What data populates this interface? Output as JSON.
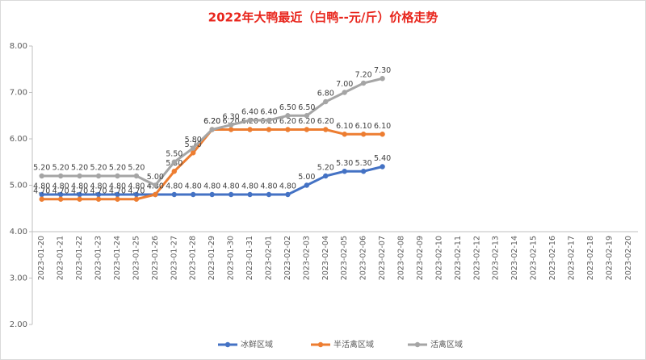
{
  "chart_data": {
    "type": "line",
    "title": "2022年大鸭最近（白鸭--元/斤）价格走势",
    "categories": [
      "2023-01-20",
      "2023-01-21",
      "2023-01-22",
      "2023-01-23",
      "2023-01-24",
      "2023-01-25",
      "2023-01-26",
      "2023-01-27",
      "2023-01-28",
      "2023-01-29",
      "2023-01-30",
      "2023-01-31",
      "2023-02-01",
      "2023-02-02",
      "2023-02-03",
      "2023-02-04",
      "2023-02-05",
      "2023-02-06",
      "2023-02-07",
      "2023-02-08",
      "2023-02-09",
      "2023-02-10",
      "2023-02-11",
      "2023-02-12",
      "2023-02-13",
      "2023-02-14",
      "2023-02-15",
      "2023-02-16",
      "2023-02-17",
      "2023-02-18",
      "2023-02-19",
      "2023-02-20"
    ],
    "series": [
      {
        "name": "冰鲜区域",
        "color": "#4472c4",
        "values": [
          4.8,
          4.8,
          4.8,
          4.8,
          4.8,
          4.8,
          4.8,
          4.8,
          4.8,
          4.8,
          4.8,
          4.8,
          4.8,
          4.8,
          5.0,
          5.2,
          5.3,
          5.3,
          5.4,
          null,
          null,
          null,
          null,
          null,
          null,
          null,
          null,
          null,
          null,
          null,
          null,
          null
        ],
        "value_labels": [
          "4.80",
          "4.80",
          "4.80",
          "4.80",
          "4.80",
          "4.80",
          "4.80",
          "4.80",
          "4.80",
          "4.80",
          "4.80",
          "4.80",
          "4.80",
          "4.80",
          "5.00",
          "5.20",
          "5.30",
          "5.30",
          "5.40",
          null,
          null,
          null,
          null,
          null,
          null,
          null,
          null,
          null,
          null,
          null,
          null,
          null
        ]
      },
      {
        "name": "半活禽区域",
        "color": "#ed7d31",
        "values": [
          4.7,
          4.7,
          4.7,
          4.7,
          4.7,
          4.7,
          4.8,
          5.3,
          5.7,
          6.2,
          6.2,
          6.2,
          6.2,
          6.2,
          6.2,
          6.2,
          6.1,
          6.1,
          6.1,
          null,
          null,
          null,
          null,
          null,
          null,
          null,
          null,
          null,
          null,
          null,
          null,
          null
        ],
        "value_labels": [
          "4.70",
          "4.70",
          "4.70",
          "4.70",
          "4.70",
          "4.70",
          "4.80",
          "5.30",
          "5.70",
          "6.20",
          "6.20",
          "6.20",
          "6.20",
          "6.20",
          "6.20",
          "6.20",
          "6.10",
          "6.10",
          "6.10",
          null,
          null,
          null,
          null,
          null,
          null,
          null,
          null,
          null,
          null,
          null,
          null,
          null
        ]
      },
      {
        "name": "活禽区域",
        "color": "#a5a5a5",
        "values": [
          5.2,
          5.2,
          5.2,
          5.2,
          5.2,
          5.2,
          5.0,
          5.5,
          5.8,
          6.2,
          6.3,
          6.4,
          6.4,
          6.5,
          6.5,
          6.8,
          7.0,
          7.2,
          7.3,
          null,
          null,
          null,
          null,
          null,
          null,
          null,
          null,
          null,
          null,
          null,
          null,
          null
        ],
        "value_labels": [
          "5.20",
          "5.20",
          "5.20",
          "5.20",
          "5.20",
          "5.20",
          "5.00",
          "5.50",
          "5.80",
          "6.20",
          "6.30",
          "6.40",
          "6.40",
          "6.50",
          "6.50",
          "6.80",
          "7.00",
          "7.20",
          "7.30",
          null,
          null,
          null,
          null,
          null,
          null,
          null,
          null,
          null,
          null,
          null,
          null,
          null
        ]
      }
    ],
    "ylim": [
      2,
      8
    ],
    "yticks": [
      {
        "value": 2,
        "label": "2.00"
      },
      {
        "value": 3,
        "label": "3.00"
      },
      {
        "value": 4,
        "label": "4.00"
      },
      {
        "value": 5,
        "label": "5.00"
      },
      {
        "value": 6,
        "label": "6.00"
      },
      {
        "value": 7,
        "label": "7.00"
      },
      {
        "value": 8,
        "label": "8.00"
      }
    ],
    "x_axis_crossing": 4,
    "legend": "bottom"
  }
}
